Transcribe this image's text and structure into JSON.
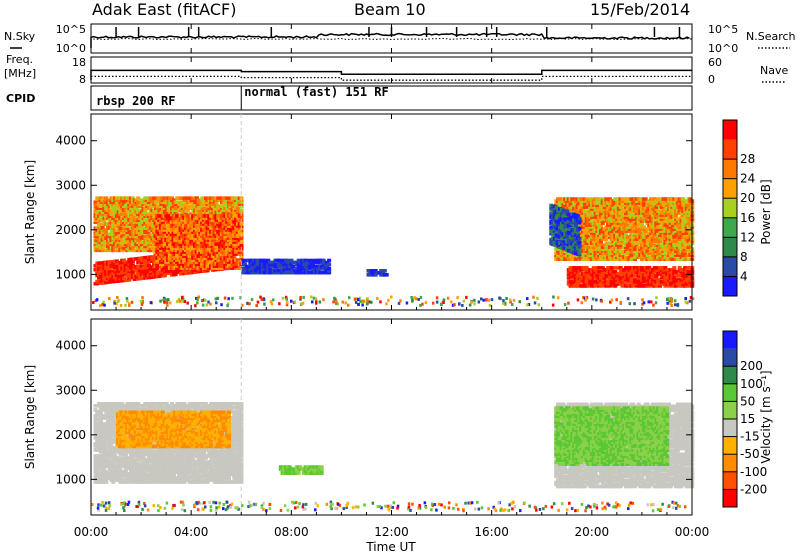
{
  "header": {
    "radar": "Adak East (fitACF)",
    "beam": "Beam 10",
    "date": "15/Feb/2014"
  },
  "colors": {
    "power": [
      "#1a1aff",
      "#2a4aa8",
      "#2e8a4a",
      "#3fa84a",
      "#a8d020",
      "#ffa000",
      "#ff7800",
      "#ff4000",
      "#ff0000"
    ],
    "velocity": [
      "#ff0000",
      "#ff5000",
      "#ff8c00",
      "#ffb000",
      "#c8c8c0",
      "#8ad048",
      "#5ac832",
      "#2e8a4a",
      "#2a4aa8",
      "#1a1aff"
    ],
    "ground": "#c8c8c0"
  },
  "chart_data": [
    {
      "type": "line",
      "name": "status-panel",
      "left_labels": {
        "nsky": "N.Sky",
        "freq": "Freq.",
        "freq_unit": "[MHz]",
        "cpid": "CPID"
      },
      "right_labels": {
        "nsearch": "N.Search",
        "nave": "Nave"
      },
      "noise_ticks_left": [
        "10^5",
        "10^0"
      ],
      "noise_ticks_right": [
        "10^5",
        "10^0"
      ],
      "freq_ticks": [
        "18",
        "8"
      ],
      "nave_ticks": [
        "60",
        "0"
      ],
      "freq_mhz": [
        {
          "start_h": 0.0,
          "end_h": 6.0,
          "value": 12.8
        },
        {
          "start_h": 6.0,
          "end_h": 10.0,
          "value": 12.2
        },
        {
          "start_h": 10.0,
          "end_h": 18.0,
          "value": 10.9
        },
        {
          "start_h": 18.0,
          "end_h": 24.0,
          "value": 12.8
        }
      ],
      "cpid_segments": [
        {
          "start_h": 0.0,
          "label": "rbsp 200 RF"
        },
        {
          "start_h": 6.0,
          "label": "normal (fast) 151 RF"
        }
      ],
      "noise_spikes_h": [
        1.0,
        1.9,
        3.9,
        4.3,
        7.2,
        11.1,
        12.0,
        13.4,
        14.6,
        15.8,
        16.2,
        18.2,
        22.5,
        23.5
      ]
    },
    {
      "type": "heatmap",
      "name": "power",
      "ylabel": "Slant Range [km]",
      "ylim": [
        200,
        4600
      ],
      "yticks": [
        1000,
        2000,
        3000,
        4000
      ],
      "colorbar_label": "Power [dB]",
      "colorbar_ticks": [
        "4",
        "8",
        "12",
        "16",
        "20",
        "24",
        "28"
      ],
      "regions": [
        {
          "t0": 0.1,
          "t1": 5.5,
          "r0": 750,
          "r1": 1250,
          "shape": "rising",
          "levels": [
            7,
            8
          ]
        },
        {
          "t0": 0.1,
          "t1": 6.0,
          "r0": 1500,
          "r1": 2700,
          "shape": "flat",
          "levels": [
            4,
            5,
            6,
            7
          ]
        },
        {
          "t0": 2.5,
          "t1": 6.0,
          "r0": 1100,
          "r1": 2300,
          "shape": "flat",
          "levels": [
            5,
            6,
            7,
            8
          ]
        },
        {
          "t0": 6.0,
          "t1": 9.5,
          "r0": 1000,
          "r1": 1300,
          "shape": "flat",
          "levels": [
            0,
            1
          ]
        },
        {
          "t0": 11.0,
          "t1": 11.8,
          "r0": 950,
          "r1": 1100,
          "shape": "flat",
          "levels": [
            0,
            1
          ]
        },
        {
          "t0": 18.5,
          "t1": 24.0,
          "r0": 1300,
          "r1": 2700,
          "shape": "flat",
          "levels": [
            4,
            5,
            6,
            7
          ]
        },
        {
          "t0": 18.3,
          "t1": 19.5,
          "r0": 1400,
          "r1": 2300,
          "shape": "falling",
          "levels": [
            0,
            1,
            2
          ]
        },
        {
          "t0": 19.0,
          "t1": 24.0,
          "r0": 700,
          "r1": 1150,
          "shape": "flat",
          "levels": [
            7,
            8
          ]
        }
      ]
    },
    {
      "type": "heatmap",
      "name": "velocity",
      "ylabel": "Slant Range [km]",
      "ylim": [
        200,
        4600
      ],
      "yticks": [
        1000,
        2000,
        3000,
        4000
      ],
      "colorbar_label": "Velocity [m s⁻¹]",
      "colorbar_ticks": [
        "-200",
        "-100",
        "-50",
        "-15",
        "15",
        "50",
        "100",
        "200"
      ],
      "regions": [
        {
          "t0": 0.1,
          "t1": 6.0,
          "r0": 900,
          "r1": 2700,
          "shape": "flat",
          "levels": [
            4
          ]
        },
        {
          "t0": 1.0,
          "t1": 5.5,
          "r0": 1700,
          "r1": 2500,
          "shape": "flat",
          "levels": [
            3,
            2
          ]
        },
        {
          "t0": 7.5,
          "t1": 9.2,
          "r0": 1100,
          "r1": 1300,
          "shape": "flat",
          "levels": [
            6,
            5
          ]
        },
        {
          "t0": 18.5,
          "t1": 24.0,
          "r0": 800,
          "r1": 2700,
          "shape": "flat",
          "levels": [
            4
          ]
        },
        {
          "t0": 18.5,
          "t1": 23.0,
          "r0": 1300,
          "r1": 2600,
          "shape": "flat",
          "levels": [
            5,
            6
          ]
        }
      ]
    }
  ],
  "axes": {
    "xlabel": "Time UT",
    "xticks": [
      "00:00",
      "04:00",
      "08:00",
      "12:00",
      "16:00",
      "20:00",
      "00:00"
    ]
  }
}
